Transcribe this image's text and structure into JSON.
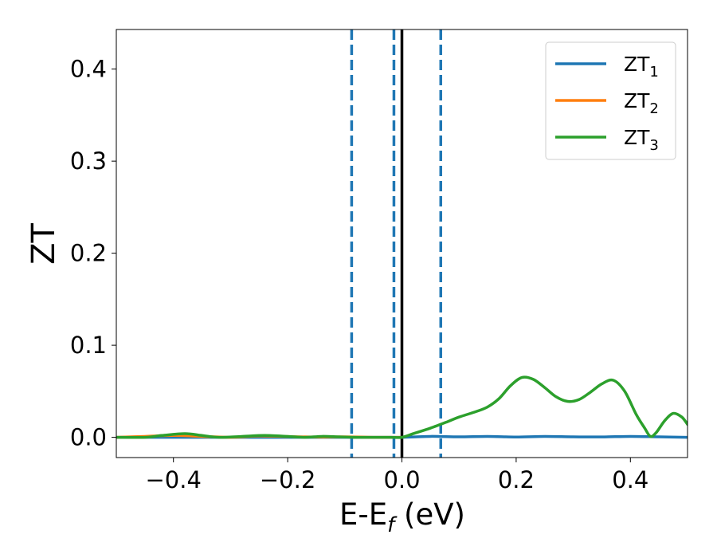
{
  "chart_data": {
    "type": "line",
    "xlabel": {
      "main": "E-E",
      "sub": "f",
      "suffix": " (eV)"
    },
    "ylabel": "ZT",
    "xlim": [
      -0.5,
      0.5
    ],
    "ylim": [
      -0.022,
      0.443
    ],
    "xticks": [
      -0.4,
      -0.2,
      0.0,
      0.2,
      0.4
    ],
    "xtick_labels": [
      "−0.4",
      "−0.2",
      "0.0",
      "0.2",
      "0.4"
    ],
    "yticks": [
      0.0,
      0.1,
      0.2,
      0.3,
      0.4
    ],
    "ytick_labels": [
      "0.0",
      "0.1",
      "0.2",
      "0.3",
      "0.4"
    ],
    "grid": false,
    "legend_position": "top-right",
    "vlines": [
      {
        "x": -0.088,
        "style": "dashed",
        "color": "#1f77b4"
      },
      {
        "x": -0.014,
        "style": "dashed",
        "color": "#1f77b4"
      },
      {
        "x": 0.0,
        "style": "solid",
        "color": "#000000"
      },
      {
        "x": 0.068,
        "style": "dashed",
        "color": "#1f77b4"
      }
    ],
    "series": [
      {
        "name": "ZT",
        "sub": "1",
        "color": "#1f77b4",
        "x": [
          -0.5,
          -0.4,
          -0.3,
          -0.2,
          -0.1,
          0.0,
          0.05,
          0.1,
          0.15,
          0.2,
          0.25,
          0.3,
          0.35,
          0.4,
          0.45,
          0.5
        ],
        "y": [
          0.0,
          0.0,
          0.0,
          0.0,
          0.0,
          0.0,
          0.001,
          0.0005,
          0.001,
          0.0003,
          0.001,
          0.0005,
          0.0004,
          0.001,
          0.0005,
          0.0
        ]
      },
      {
        "name": "ZT",
        "sub": "2",
        "color": "#ff7f0e",
        "x": [
          -0.5,
          -0.45,
          -0.4,
          -0.35,
          -0.3,
          -0.25,
          -0.2,
          -0.15,
          -0.1,
          -0.05,
          0.0
        ],
        "y": [
          0.0,
          0.001,
          0.002,
          0.001,
          0.0,
          0.0015,
          0.0008,
          0.0003,
          0.0005,
          0.0,
          0.0
        ]
      },
      {
        "name": "ZT",
        "sub": "3",
        "color": "#2ca02c",
        "x": [
          -0.5,
          -0.45,
          -0.42,
          -0.38,
          -0.35,
          -0.32,
          -0.28,
          -0.24,
          -0.2,
          -0.17,
          -0.14,
          -0.11,
          -0.08,
          -0.05,
          -0.02,
          0.0,
          0.02,
          0.05,
          0.08,
          0.1,
          0.13,
          0.15,
          0.17,
          0.19,
          0.21,
          0.23,
          0.25,
          0.27,
          0.29,
          0.31,
          0.33,
          0.35,
          0.37,
          0.39,
          0.41,
          0.425,
          0.435,
          0.445,
          0.46,
          0.475,
          0.49,
          0.5
        ],
        "y": [
          0.0,
          0.0,
          0.002,
          0.004,
          0.002,
          0.0,
          0.001,
          0.002,
          0.001,
          0.0,
          0.001,
          0.0005,
          0.0,
          0.0,
          0.0,
          0.0,
          0.004,
          0.01,
          0.017,
          0.022,
          0.028,
          0.033,
          0.042,
          0.056,
          0.065,
          0.063,
          0.054,
          0.044,
          0.039,
          0.041,
          0.049,
          0.058,
          0.062,
          0.05,
          0.025,
          0.01,
          0.001,
          0.005,
          0.018,
          0.026,
          0.022,
          0.014
        ]
      }
    ]
  }
}
